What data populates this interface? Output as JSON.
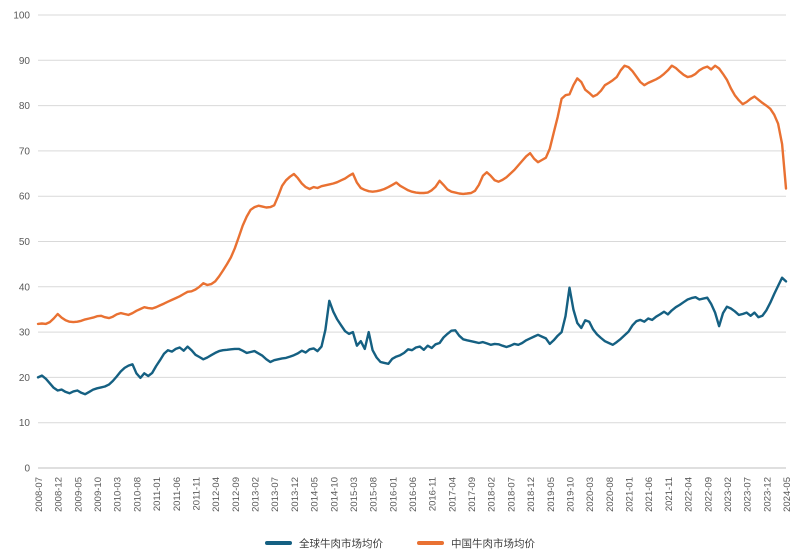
{
  "chart_data": {
    "type": "line",
    "title": "",
    "x_start": "2008-07",
    "x_end": "2024-05",
    "x_frequency": "monthly",
    "x_tick_step_months": 5,
    "x_tick_labels": [
      "2008-07",
      "2008-12",
      "2009-05",
      "2009-10",
      "2010-03",
      "2010-08",
      "2011-01",
      "2011-06",
      "2011-11",
      "2012-04",
      "2012-09",
      "2013-02",
      "2013-07",
      "2013-12",
      "2014-05",
      "2014-10",
      "2015-03",
      "2015-08",
      "2016-01",
      "2016-06",
      "2016-11",
      "2017-04",
      "2017-09",
      "2018-02",
      "2018-07",
      "2018-12",
      "2019-05",
      "2019-10",
      "2020-03",
      "2020-08",
      "2021-01",
      "2021-06",
      "2021-11",
      "2022-04",
      "2022-09",
      "2023-02",
      "2023-07",
      "2023-12",
      "2024-05"
    ],
    "ylim": [
      0,
      100
    ],
    "y_ticks": [
      0,
      10,
      20,
      30,
      40,
      50,
      60,
      70,
      80,
      90,
      100
    ],
    "grid": true,
    "legend_position": "bottom-center",
    "background_color": "#ffffff",
    "gridline_color": "#d9d9d9",
    "axis_line_color": "#bfbfbf",
    "tick_label_color": "#595959",
    "series": [
      {
        "name": "全球牛肉市场均价",
        "color": "#156082",
        "values": [
          20.0,
          20.4,
          19.7,
          18.7,
          17.7,
          17.1,
          17.3,
          16.8,
          16.5,
          16.9,
          17.1,
          16.6,
          16.3,
          16.8,
          17.3,
          17.6,
          17.8,
          18.0,
          18.4,
          19.2,
          20.2,
          21.3,
          22.1,
          22.6,
          22.9,
          20.9,
          19.9,
          20.9,
          20.3,
          21.0,
          22.5,
          23.8,
          25.2,
          26.0,
          25.7,
          26.3,
          26.6,
          25.9,
          26.8,
          26.0,
          25.0,
          24.5,
          24.0,
          24.4,
          24.9,
          25.4,
          25.8,
          26.0,
          26.1,
          26.2,
          26.3,
          26.3,
          25.9,
          25.4,
          25.6,
          25.8,
          25.3,
          24.8,
          24.0,
          23.4,
          23.8,
          24.0,
          24.2,
          24.3,
          24.6,
          24.9,
          25.3,
          25.9,
          25.5,
          26.2,
          26.4,
          25.8,
          26.8,
          30.5,
          36.9,
          34.5,
          32.8,
          31.5,
          30.2,
          29.6,
          30.0,
          27.0,
          28.0,
          26.3,
          30.0,
          26.0,
          24.4,
          23.4,
          23.2,
          23.0,
          24.1,
          24.6,
          24.9,
          25.4,
          26.2,
          26.0,
          26.6,
          26.8,
          26.1,
          27.0,
          26.5,
          27.3,
          27.6,
          28.8,
          29.6,
          30.3,
          30.4,
          29.2,
          28.4,
          28.2,
          28.0,
          27.8,
          27.6,
          27.8,
          27.5,
          27.2,
          27.4,
          27.3,
          27.0,
          26.7,
          27.0,
          27.4,
          27.2,
          27.6,
          28.2,
          28.6,
          29.0,
          29.4,
          29.0,
          28.6,
          27.4,
          28.2,
          29.2,
          30.0,
          33.5,
          39.8,
          35.0,
          32.0,
          30.9,
          32.6,
          32.3,
          30.6,
          29.5,
          28.7,
          28.0,
          27.6,
          27.2,
          27.8,
          28.5,
          29.3,
          30.1,
          31.5,
          32.4,
          32.7,
          32.3,
          33.0,
          32.7,
          33.4,
          33.9,
          34.5,
          33.9,
          34.8,
          35.5,
          36.0,
          36.6,
          37.2,
          37.5,
          37.7,
          37.2,
          37.4,
          37.6,
          36.2,
          34.3,
          31.3,
          34.2,
          35.6,
          35.2,
          34.6,
          33.8,
          34.0,
          34.3,
          33.6,
          34.3,
          33.3,
          33.6,
          34.8,
          36.5,
          38.4,
          40.2,
          42.0,
          41.2
        ]
      },
      {
        "name": "中国牛肉市场均价",
        "color": "#E97132",
        "values": [
          31.8,
          31.9,
          31.8,
          32.2,
          33.0,
          34.0,
          33.2,
          32.6,
          32.3,
          32.2,
          32.3,
          32.5,
          32.8,
          33.0,
          33.2,
          33.5,
          33.6,
          33.3,
          33.1,
          33.4,
          33.9,
          34.2,
          34.0,
          33.8,
          34.2,
          34.7,
          35.1,
          35.5,
          35.3,
          35.2,
          35.5,
          35.9,
          36.3,
          36.7,
          37.1,
          37.5,
          37.9,
          38.4,
          38.9,
          39.0,
          39.4,
          40.0,
          40.8,
          40.4,
          40.6,
          41.2,
          42.3,
          43.6,
          45.0,
          46.5,
          48.5,
          51.0,
          53.5,
          55.5,
          57.0,
          57.6,
          57.9,
          57.7,
          57.5,
          57.6,
          58.0,
          60.0,
          62.3,
          63.5,
          64.3,
          64.9,
          64.0,
          62.8,
          62.0,
          61.6,
          62.0,
          61.8,
          62.2,
          62.4,
          62.6,
          62.8,
          63.1,
          63.5,
          63.9,
          64.5,
          65.0,
          63.0,
          61.8,
          61.4,
          61.1,
          61.0,
          61.1,
          61.3,
          61.6,
          62.0,
          62.5,
          63.0,
          62.3,
          61.8,
          61.3,
          61.0,
          60.8,
          60.7,
          60.7,
          60.8,
          61.3,
          62.1,
          63.4,
          62.5,
          61.5,
          61.0,
          60.8,
          60.6,
          60.5,
          60.6,
          60.7,
          61.2,
          62.5,
          64.5,
          65.3,
          64.5,
          63.5,
          63.2,
          63.6,
          64.2,
          65.0,
          65.8,
          66.8,
          67.8,
          68.8,
          69.5,
          68.3,
          67.5,
          68.0,
          68.5,
          70.5,
          74.0,
          77.5,
          81.5,
          82.3,
          82.5,
          84.5,
          86.0,
          85.2,
          83.5,
          82.8,
          82.0,
          82.4,
          83.3,
          84.5,
          85.0,
          85.6,
          86.3,
          87.8,
          88.8,
          88.5,
          87.6,
          86.4,
          85.2,
          84.5,
          85.0,
          85.4,
          85.8,
          86.3,
          87.0,
          87.8,
          88.8,
          88.3,
          87.5,
          86.8,
          86.3,
          86.5,
          87.0,
          87.8,
          88.3,
          88.6,
          88.0,
          88.8,
          88.2,
          87.0,
          85.7,
          83.8,
          82.3,
          81.2,
          80.3,
          80.8,
          81.5,
          82.0,
          81.3,
          80.6,
          80.0,
          79.3,
          78.0,
          76.0,
          71.5,
          61.7
        ]
      }
    ]
  },
  "legend": {
    "item1": "全球牛肉市场均价",
    "item2": "中国牛肉市场均价"
  }
}
